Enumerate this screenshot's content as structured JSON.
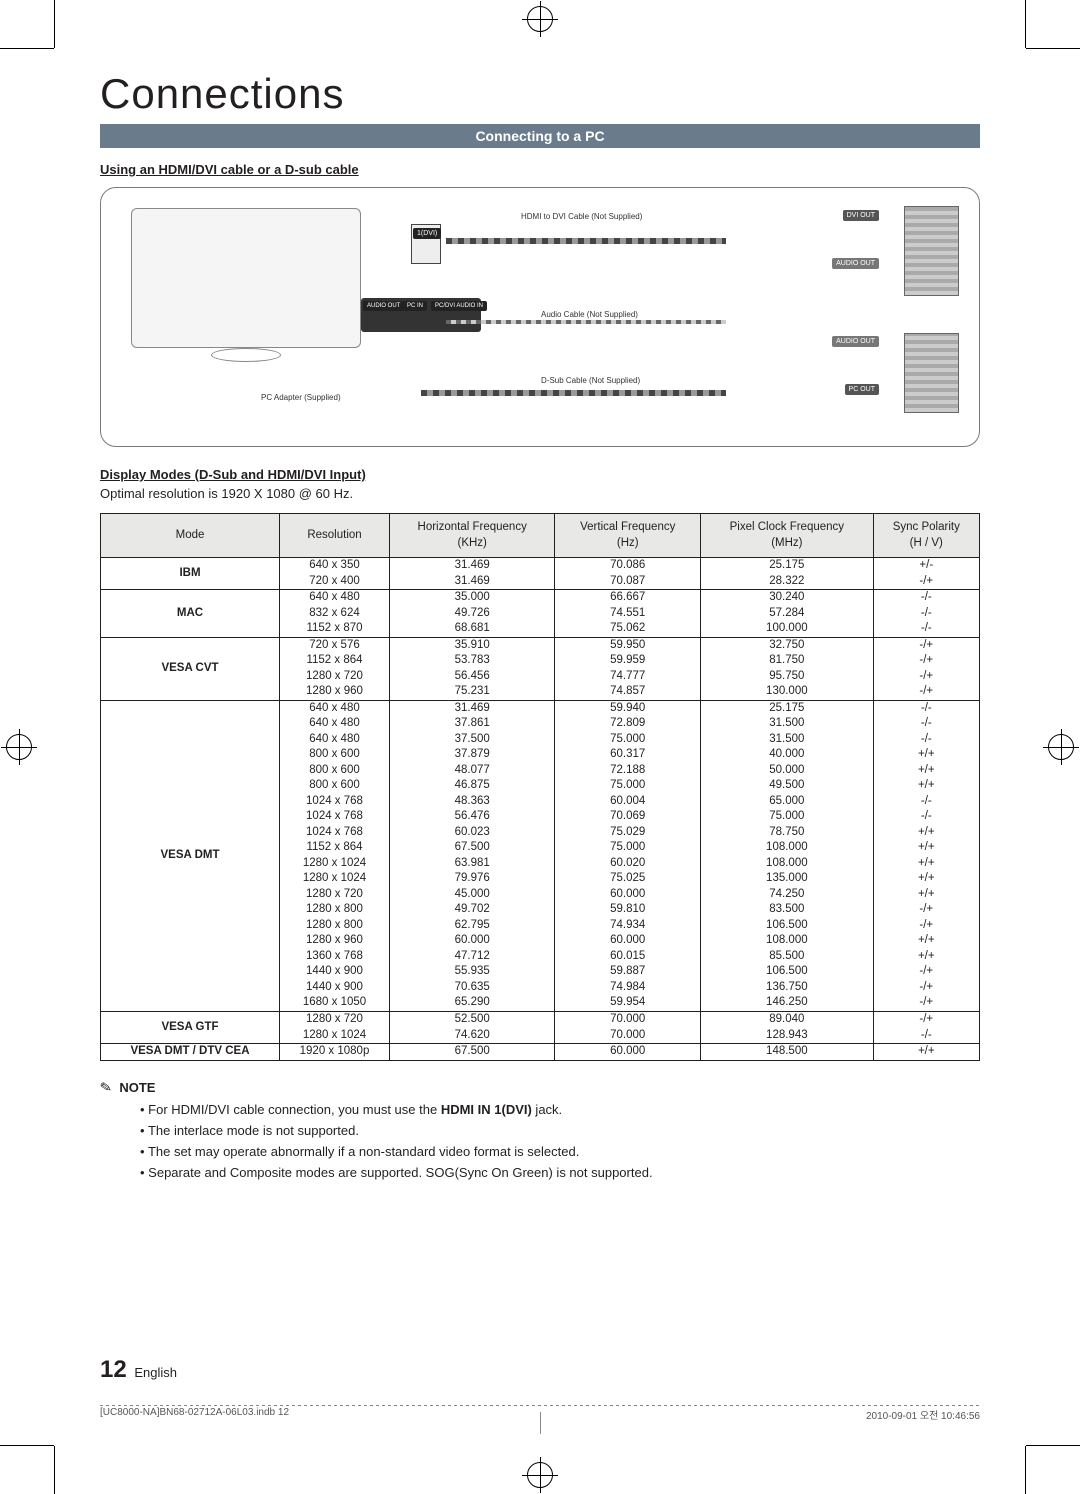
{
  "page": {
    "title": "Connections",
    "banner": "Connecting to a PC",
    "sub_heading": "Using an HDMI/DVI cable or a D-sub cable",
    "section_heading": "Display Modes (D-Sub and HDMI/DVI Input)",
    "optimal_text": "Optimal resolution is 1920 X 1080 @ 60 Hz.",
    "page_number": "12",
    "page_lang": "English"
  },
  "diagram": {
    "hdmi_cable": "HDMI to DVI Cable (Not Supplied)",
    "audio_cable": "Audio Cable (Not Supplied)",
    "dsub_cable": "D-Sub Cable (Not Supplied)",
    "pc_adapter": "PC Adapter (Supplied)",
    "dvi_out": "DVI OUT",
    "audio_out": "AUDIO OUT",
    "pc_out": "PC OUT",
    "port_dvi": "1(DVI)",
    "port_audio": "AUDIO OUT",
    "port_pcin": "PC IN",
    "port_pcdvi": "PC/DVI AUDIO IN"
  },
  "table": {
    "columns": [
      "Mode",
      "Resolution",
      "Horizontal Frequency (KHz)",
      "Vertical Frequency (Hz)",
      "Pixel Clock Frequency (MHz)",
      "Sync Polarity (H / V)"
    ],
    "groups": [
      {
        "mode": "IBM",
        "rows": [
          [
            "640 x 350",
            "31.469",
            "70.086",
            "25.175",
            "+/-"
          ],
          [
            "720 x 400",
            "31.469",
            "70.087",
            "28.322",
            "-/+"
          ]
        ]
      },
      {
        "mode": "MAC",
        "rows": [
          [
            "640 x 480",
            "35.000",
            "66.667",
            "30.240",
            "-/-"
          ],
          [
            "832 x 624",
            "49.726",
            "74.551",
            "57.284",
            "-/-"
          ],
          [
            "1152 x 870",
            "68.681",
            "75.062",
            "100.000",
            "-/-"
          ]
        ]
      },
      {
        "mode": "VESA CVT",
        "rows": [
          [
            "720 x 576",
            "35.910",
            "59.950",
            "32.750",
            "-/+"
          ],
          [
            "1152 x 864",
            "53.783",
            "59.959",
            "81.750",
            "-/+"
          ],
          [
            "1280 x 720",
            "56.456",
            "74.777",
            "95.750",
            "-/+"
          ],
          [
            "1280 x 960",
            "75.231",
            "74.857",
            "130.000",
            "-/+"
          ]
        ]
      },
      {
        "mode": "VESA DMT",
        "rows": [
          [
            "640 x 480",
            "31.469",
            "59.940",
            "25.175",
            "-/-"
          ],
          [
            "640 x 480",
            "37.861",
            "72.809",
            "31.500",
            "-/-"
          ],
          [
            "640 x 480",
            "37.500",
            "75.000",
            "31.500",
            "-/-"
          ],
          [
            "800 x 600",
            "37.879",
            "60.317",
            "40.000",
            "+/+"
          ],
          [
            "800 x 600",
            "48.077",
            "72.188",
            "50.000",
            "+/+"
          ],
          [
            "800 x 600",
            "46.875",
            "75.000",
            "49.500",
            "+/+"
          ],
          [
            "1024 x 768",
            "48.363",
            "60.004",
            "65.000",
            "-/-"
          ],
          [
            "1024 x 768",
            "56.476",
            "70.069",
            "75.000",
            "-/-"
          ],
          [
            "1024 x 768",
            "60.023",
            "75.029",
            "78.750",
            "+/+"
          ],
          [
            "1152 x 864",
            "67.500",
            "75.000",
            "108.000",
            "+/+"
          ],
          [
            "1280 x 1024",
            "63.981",
            "60.020",
            "108.000",
            "+/+"
          ],
          [
            "1280 x 1024",
            "79.976",
            "75.025",
            "135.000",
            "+/+"
          ],
          [
            "1280 x 720",
            "45.000",
            "60.000",
            "74.250",
            "+/+"
          ],
          [
            "1280 x 800",
            "49.702",
            "59.810",
            "83.500",
            "-/+"
          ],
          [
            "1280 x 800",
            "62.795",
            "74.934",
            "106.500",
            "-/+"
          ],
          [
            "1280 x 960",
            "60.000",
            "60.000",
            "108.000",
            "+/+"
          ],
          [
            "1360 x 768",
            "47.712",
            "60.015",
            "85.500",
            "+/+"
          ],
          [
            "1440 x 900",
            "55.935",
            "59.887",
            "106.500",
            "-/+"
          ],
          [
            "1440 x 900",
            "70.635",
            "74.984",
            "136.750",
            "-/+"
          ],
          [
            "1680 x 1050",
            "65.290",
            "59.954",
            "146.250",
            "-/+"
          ]
        ]
      },
      {
        "mode": "VESA GTF",
        "rows": [
          [
            "1280 x 720",
            "52.500",
            "70.000",
            "89.040",
            "-/+"
          ],
          [
            "1280 x 1024",
            "74.620",
            "70.000",
            "128.943",
            "-/-"
          ]
        ]
      },
      {
        "mode": "VESA DMT / DTV CEA",
        "rows": [
          [
            "1920 x 1080p",
            "67.500",
            "60.000",
            "148.500",
            "+/+"
          ]
        ]
      }
    ]
  },
  "notes": {
    "label": "NOTE",
    "items": [
      "For HDMI/DVI cable connection, you must use the HDMI IN 1(DVI) jack.",
      "The interlace mode is not supported.",
      "The set may operate abnormally if a non-standard video format is selected.",
      "Separate and Composite modes are supported. SOG(Sync On Green) is not supported."
    ]
  },
  "footer": {
    "left": "[UC8000-NA]BN68-02712A-06L03.indb   12",
    "right": "2010-09-01   오전 10:46:56"
  },
  "colors": {
    "banner_bg": "#6a7b8c",
    "header_bg": "#e8e8e6",
    "text": "#231f20"
  }
}
